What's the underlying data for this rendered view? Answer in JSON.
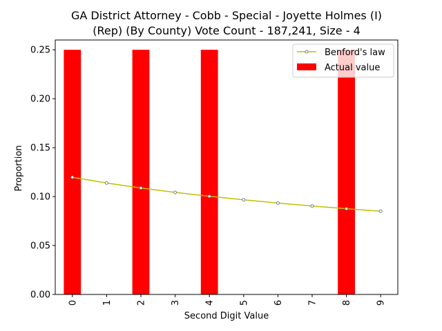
{
  "chart_data": {
    "type": "bar",
    "title_line1": "GA District Attorney - Cobb - Special - Joyette Holmes (I)",
    "title_line2": "(Rep) (By County) Vote Count - 187,241, Size - 4",
    "xlabel": "Second Digit Value",
    "ylabel": "Proportion",
    "categories": [
      "0",
      "1",
      "2",
      "3",
      "4",
      "5",
      "6",
      "7",
      "8",
      "9"
    ],
    "ylim": [
      0,
      0.26
    ],
    "yticks": [
      "0.00",
      "0.05",
      "0.10",
      "0.15",
      "0.20",
      "0.25"
    ],
    "legend_position": "top-right",
    "series": [
      {
        "name": "Actual value",
        "kind": "bar",
        "color": "#ff0000",
        "values": [
          0.25,
          0,
          0.25,
          0,
          0.25,
          0,
          0,
          0,
          0.25,
          0
        ]
      },
      {
        "name": "Benford's law",
        "kind": "line",
        "color": "#bfbf00",
        "values": [
          0.1197,
          0.1139,
          0.1088,
          0.1043,
          0.1003,
          0.0967,
          0.0934,
          0.0904,
          0.0876,
          0.085
        ]
      }
    ]
  }
}
